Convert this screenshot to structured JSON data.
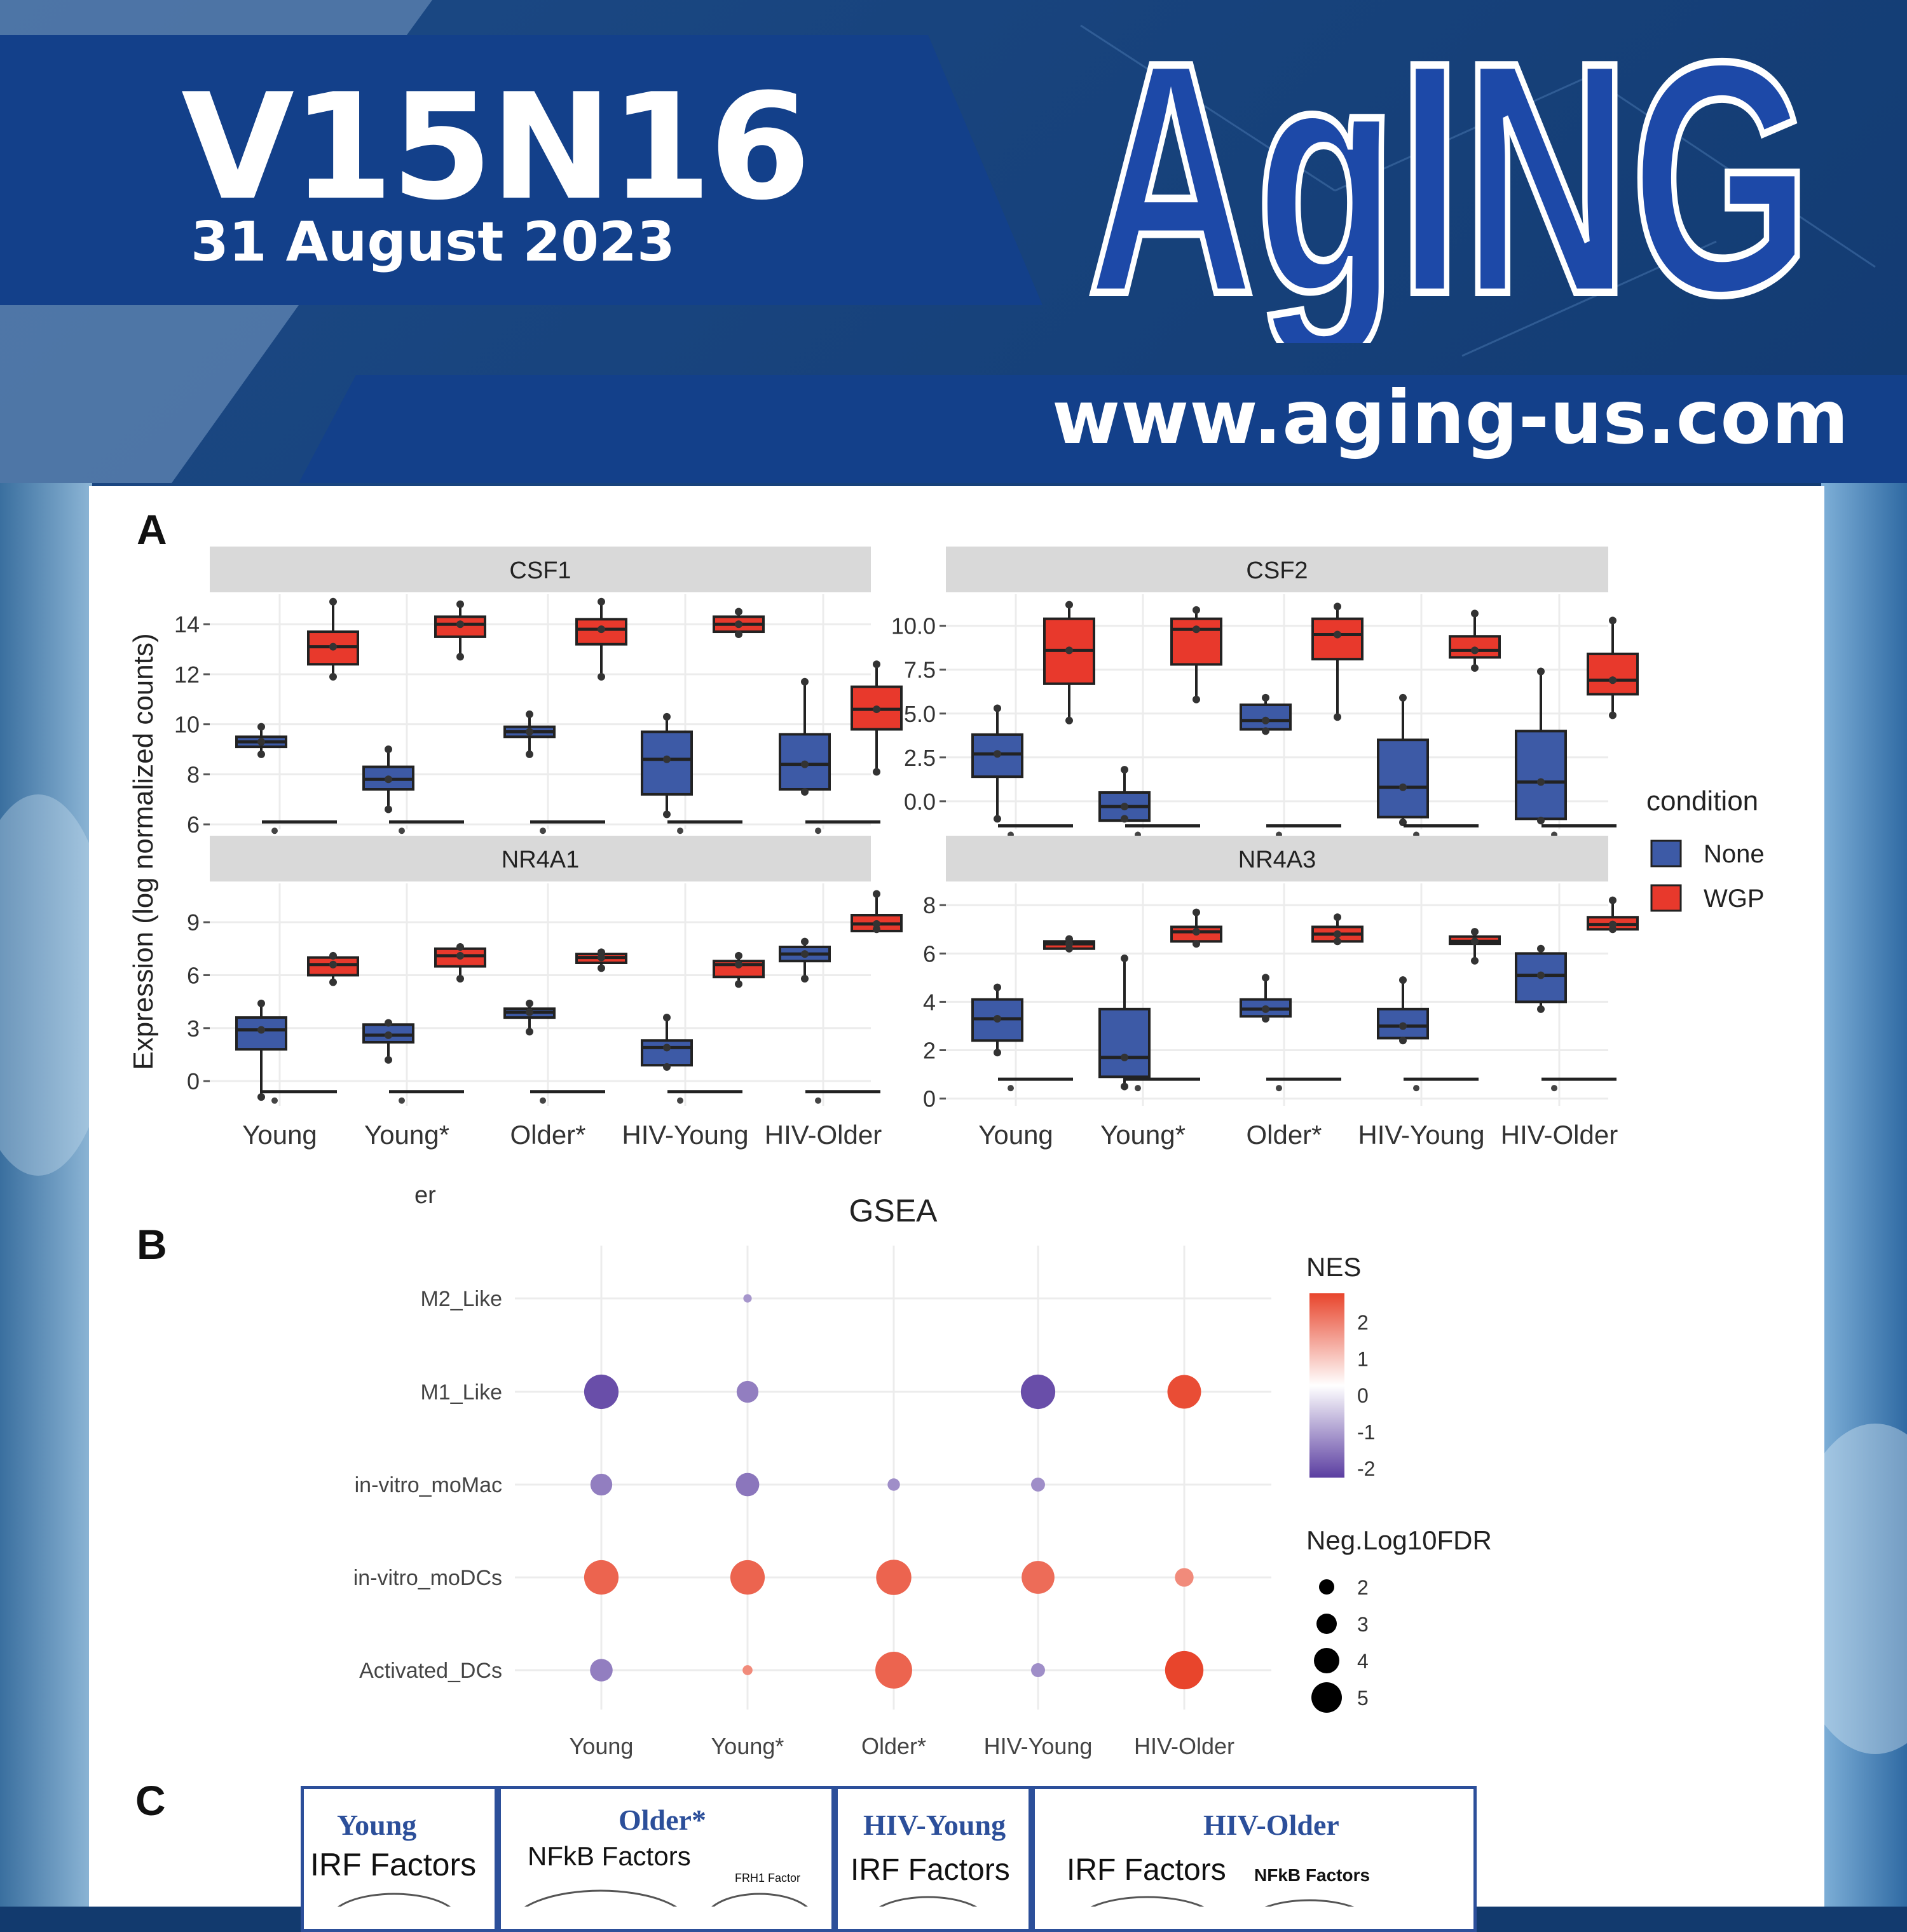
{
  "cover": {
    "issue": "V15N16",
    "date": "31 August 2023",
    "logo": "AgING",
    "url": "www.aging-us.com"
  },
  "panels": {
    "a": "A",
    "b": "B",
    "c": "C",
    "stray_text": "er"
  },
  "boxplots": {
    "ylabel": "Expression (log normalized counts)",
    "categories": [
      "Young",
      "Young*",
      "Older*",
      "HIV-Young",
      "HIV-Older"
    ],
    "legend_title": "condition",
    "conditions": [
      {
        "name": "None",
        "color": "#3d5aa6"
      },
      {
        "name": "WGP",
        "color": "#e8392c"
      }
    ],
    "facets": [
      {
        "gene": "CSF1",
        "ylim": [
          5.8,
          15.2
        ],
        "ticks": [
          6,
          8,
          10,
          12,
          14
        ],
        "tick_labels": [
          "6",
          "8",
          "10",
          "12",
          "14"
        ],
        "none": [
          [
            8.8,
            9.1,
            9.3,
            9.5,
            9.9
          ],
          [
            6.6,
            7.4,
            7.8,
            8.3,
            9.0
          ],
          [
            8.8,
            9.5,
            9.7,
            9.9,
            10.4
          ],
          [
            6.4,
            7.2,
            8.6,
            9.7,
            10.3
          ],
          [
            7.3,
            7.4,
            8.4,
            9.6,
            11.7
          ]
        ],
        "wgp": [
          [
            11.9,
            12.4,
            13.1,
            13.7,
            14.9
          ],
          [
            12.7,
            13.5,
            14.0,
            14.3,
            14.8
          ],
          [
            11.9,
            13.2,
            13.8,
            14.2,
            14.9
          ],
          [
            13.6,
            13.7,
            14.0,
            14.3,
            14.5
          ],
          [
            8.1,
            9.8,
            10.6,
            11.5,
            12.4
          ]
        ],
        "none_floor": 6.1
      },
      {
        "gene": "CSF2",
        "ylim": [
          -1.6,
          11.8
        ],
        "ticks": [
          0,
          2.5,
          5,
          7.5,
          10
        ],
        "tick_labels": [
          "0.0",
          "2.5",
          "5.0",
          "7.5",
          "10.0"
        ],
        "none": [
          [
            -1.0,
            1.4,
            2.7,
            3.8,
            5.3
          ],
          [
            -1.0,
            -1.1,
            -0.3,
            0.5,
            1.8
          ],
          [
            4.0,
            4.1,
            4.6,
            5.5,
            5.9
          ],
          [
            -1.2,
            -0.9,
            0.8,
            3.5,
            5.9
          ],
          [
            -1.1,
            -1.0,
            1.1,
            4.0,
            7.4
          ]
        ],
        "wgp": [
          [
            4.6,
            6.7,
            8.6,
            10.4,
            11.2
          ],
          [
            5.8,
            7.8,
            9.8,
            10.4,
            10.9
          ],
          [
            4.8,
            8.1,
            9.5,
            10.4,
            11.1
          ],
          [
            7.6,
            8.2,
            8.6,
            9.4,
            10.7
          ],
          [
            4.9,
            6.1,
            6.9,
            8.4,
            10.3
          ]
        ],
        "none_floor": -1.4
      },
      {
        "gene": "NR4A1",
        "ylim": [
          -1.4,
          11.2
        ],
        "ticks": [
          0,
          3,
          6,
          9
        ],
        "tick_labels": [
          "0",
          "3",
          "6",
          "9"
        ],
        "none": [
          [
            -0.9,
            1.8,
            2.9,
            3.6,
            4.4
          ],
          [
            1.2,
            2.2,
            2.6,
            3.2,
            3.3
          ],
          [
            2.8,
            3.6,
            3.9,
            4.1,
            4.4
          ],
          [
            0.8,
            0.9,
            1.9,
            2.3,
            3.6
          ],
          [
            5.8,
            6.8,
            7.2,
            7.6,
            7.9
          ]
        ],
        "wgp": [
          [
            5.6,
            6.0,
            6.6,
            7.0,
            7.1
          ],
          [
            5.8,
            6.5,
            7.1,
            7.5,
            7.6
          ],
          [
            6.4,
            6.7,
            7.0,
            7.2,
            7.3
          ],
          [
            5.5,
            5.9,
            6.6,
            6.8,
            7.1
          ],
          [
            8.6,
            8.5,
            8.9,
            9.4,
            10.6
          ]
        ],
        "none_floor": -0.6
      },
      {
        "gene": "NR4A3",
        "ylim": [
          -0.3,
          8.9
        ],
        "ticks": [
          0,
          2,
          4,
          6,
          8
        ],
        "tick_labels": [
          "0",
          "2",
          "4",
          "6",
          "8"
        ],
        "none": [
          [
            1.9,
            2.4,
            3.3,
            4.1,
            4.6
          ],
          [
            0.5,
            0.9,
            1.7,
            3.7,
            5.8
          ],
          [
            3.3,
            3.4,
            3.7,
            4.1,
            5.0
          ],
          [
            2.4,
            2.5,
            3.0,
            3.7,
            4.9
          ],
          [
            3.7,
            4.0,
            5.1,
            6.0,
            6.2
          ]
        ],
        "wgp": [
          [
            6.2,
            6.2,
            6.4,
            6.5,
            6.6
          ],
          [
            6.4,
            6.5,
            6.9,
            7.1,
            7.7
          ],
          [
            6.5,
            6.5,
            6.8,
            7.1,
            7.5
          ],
          [
            5.7,
            6.4,
            6.5,
            6.7,
            6.9
          ],
          [
            7.0,
            7.0,
            7.2,
            7.5,
            8.2
          ]
        ],
        "none_floor": 0.8
      }
    ]
  },
  "gsea": {
    "title": "GSEA",
    "rows": [
      "M2_Like",
      "M1_Like",
      "in-vitro_moMac",
      "in-vitro_moDCs",
      "Activated_DCs"
    ],
    "cols": [
      "Young",
      "Young*",
      "Older*",
      "HIV-Young",
      "HIV-Older"
    ],
    "nes_legend": "NES",
    "nes_ticks": [
      "2",
      "1",
      "0",
      "-1",
      "-2"
    ],
    "size_legend": "Neg.Log10FDR",
    "size_ticks": [
      "2",
      "3",
      "4",
      "5"
    ],
    "points": [
      {
        "row": 0,
        "col": 1,
        "nes": -1.3,
        "fdr": 1.1
      },
      {
        "row": 1,
        "col": 0,
        "nes": -2.2,
        "fdr": 4.4
      },
      {
        "row": 1,
        "col": 1,
        "nes": -1.6,
        "fdr": 2.8
      },
      {
        "row": 1,
        "col": 3,
        "nes": -2.2,
        "fdr": 4.4
      },
      {
        "row": 1,
        "col": 4,
        "nes": 2.3,
        "fdr": 4.3
      },
      {
        "row": 2,
        "col": 0,
        "nes": -1.6,
        "fdr": 2.8
      },
      {
        "row": 2,
        "col": 1,
        "nes": -1.7,
        "fdr": 3.0
      },
      {
        "row": 2,
        "col": 2,
        "nes": -1.4,
        "fdr": 1.6
      },
      {
        "row": 2,
        "col": 3,
        "nes": -1.4,
        "fdr": 1.8
      },
      {
        "row": 3,
        "col": 0,
        "nes": 2.0,
        "fdr": 4.4
      },
      {
        "row": 3,
        "col": 1,
        "nes": 2.0,
        "fdr": 4.4
      },
      {
        "row": 3,
        "col": 2,
        "nes": 2.0,
        "fdr": 4.5
      },
      {
        "row": 3,
        "col": 3,
        "nes": 1.9,
        "fdr": 4.2
      },
      {
        "row": 3,
        "col": 4,
        "nes": 1.5,
        "fdr": 2.4
      },
      {
        "row": 4,
        "col": 0,
        "nes": -1.6,
        "fdr": 2.9
      },
      {
        "row": 4,
        "col": 1,
        "nes": 1.5,
        "fdr": 1.3
      },
      {
        "row": 4,
        "col": 2,
        "nes": 2.0,
        "fdr": 4.7
      },
      {
        "row": 4,
        "col": 3,
        "nes": -1.4,
        "fdr": 1.8
      },
      {
        "row": 4,
        "col": 4,
        "nes": 2.4,
        "fdr": 4.9
      }
    ]
  },
  "panel_c": {
    "boxes": [
      {
        "title": "Young",
        "labels": [
          "IRF Factors"
        ]
      },
      {
        "title": "Older*",
        "labels": [
          "NFkB Factors",
          "FRH1 Factor"
        ]
      },
      {
        "title": "HIV-Young",
        "labels": [
          "IRF Factors"
        ]
      },
      {
        "title": "HIV-Older",
        "labels": [
          "IRF Factors",
          "NFkB Factors"
        ]
      }
    ]
  }
}
